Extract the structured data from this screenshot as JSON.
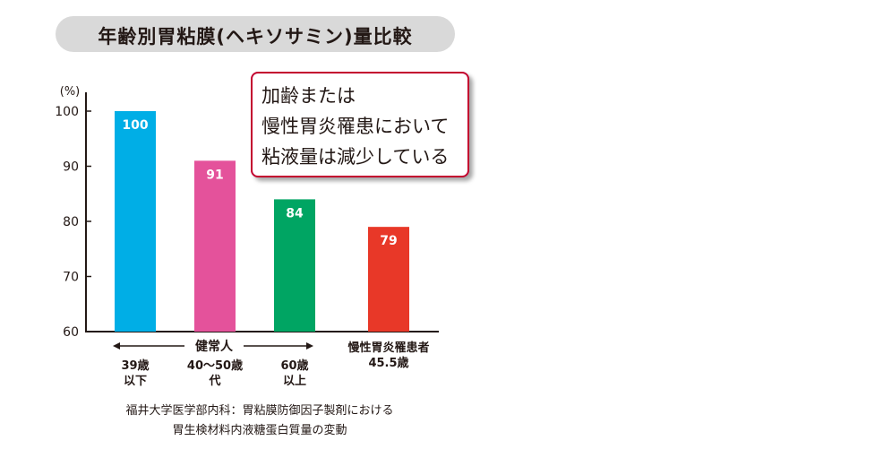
{
  "title": "年齢別胃粘膜(ヘキソサミン)量比較",
  "callout": {
    "lines": [
      "加齢または",
      "慢性胃炎罹患において",
      "粘液量は減少している"
    ],
    "border_color": "#c3002f"
  },
  "footnote": {
    "line1": "福井大学医学部内科：胃粘膜防御因子製剤における",
    "line2": "胃生検材料内液糖蛋白質量の変動"
  },
  "chart_data": {
    "type": "bar",
    "ylabel": "(%)",
    "ylim": [
      60,
      100
    ],
    "yticks": [
      60,
      70,
      80,
      90,
      100
    ],
    "grid": false,
    "categories": [
      [
        "39歳",
        "以下"
      ],
      [
        "40〜50歳",
        "代"
      ],
      [
        "60歳",
        "以上"
      ],
      [
        "慢性胃炎罹患者",
        "45.5歳"
      ]
    ],
    "values": [
      100,
      91,
      84,
      79
    ],
    "colors": [
      "#00aee6",
      "#e4529b",
      "#00a563",
      "#e83828"
    ],
    "group_label": "健常人",
    "group_span": [
      0,
      2
    ]
  }
}
